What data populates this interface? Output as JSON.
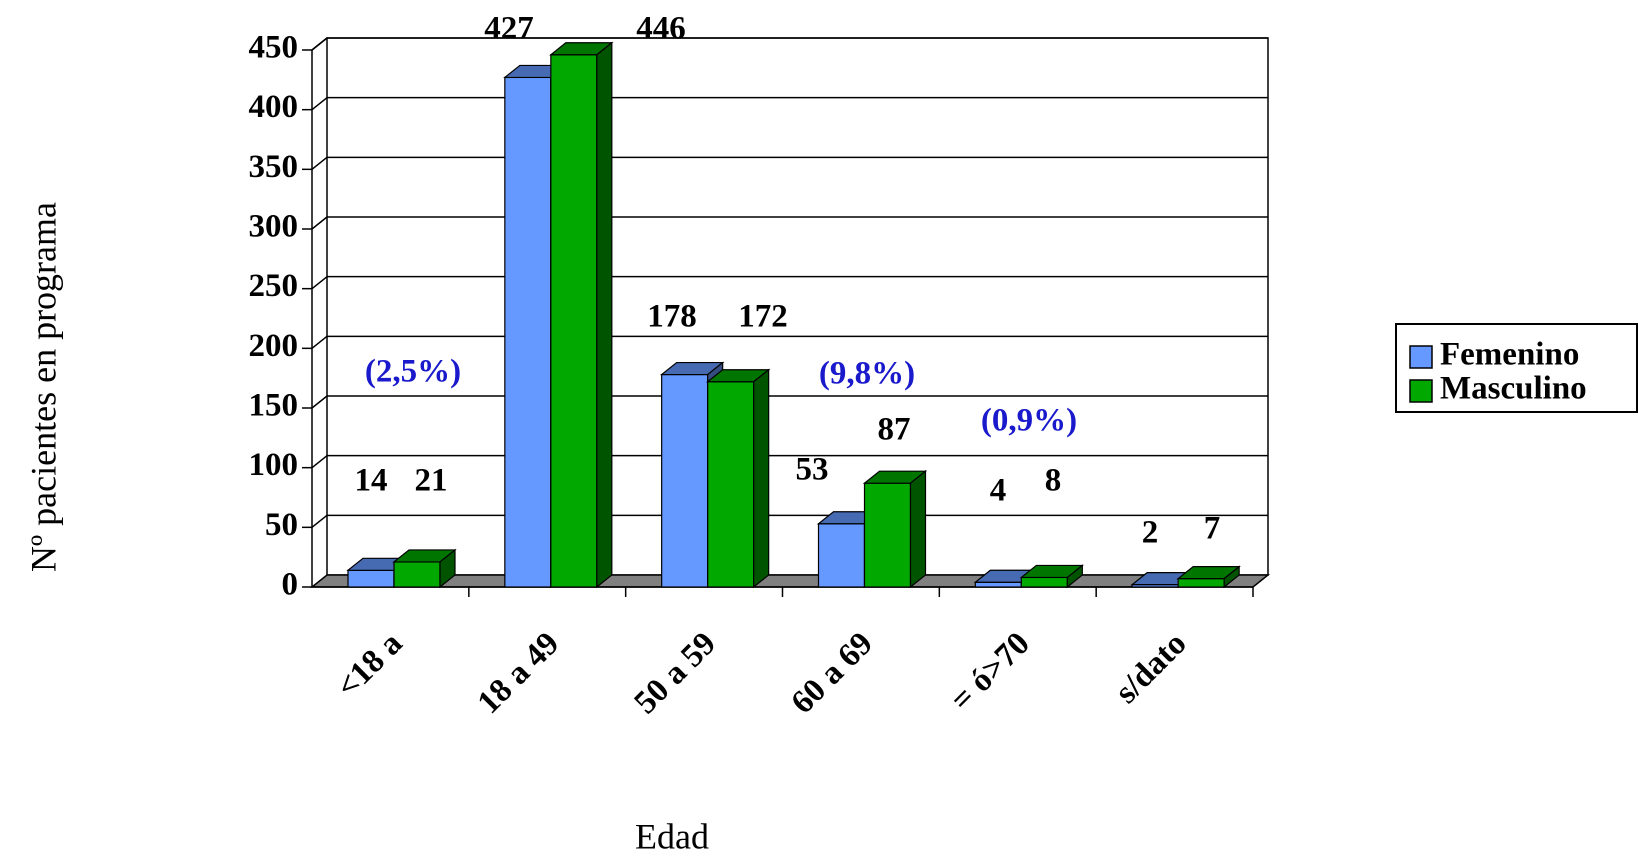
{
  "chart_data": {
    "type": "bar3d",
    "x_label": "Edad",
    "y_label": "Nº pacientes en programa",
    "categories": [
      "<18 a",
      "18 a 49",
      "50 a 59",
      "60 a 69",
      "= ó>70",
      "s/dato"
    ],
    "series": [
      {
        "name": "Femenino",
        "color": "#6699ff",
        "values": [
          14,
          427,
          178,
          53,
          4,
          2
        ]
      },
      {
        "name": "Masculino",
        "color": "#00a800",
        "values": [
          21,
          446,
          172,
          87,
          8,
          7
        ]
      }
    ],
    "annotations": [
      "(2,5%)",
      "(9,8%)",
      "(0,9%)"
    ],
    "annotation_color": "#1a1acc",
    "ylim": [
      0,
      450
    ],
    "yticks": [
      0,
      50,
      100,
      150,
      200,
      250,
      300,
      350,
      400,
      450
    ],
    "grid": true,
    "legend": "right"
  }
}
